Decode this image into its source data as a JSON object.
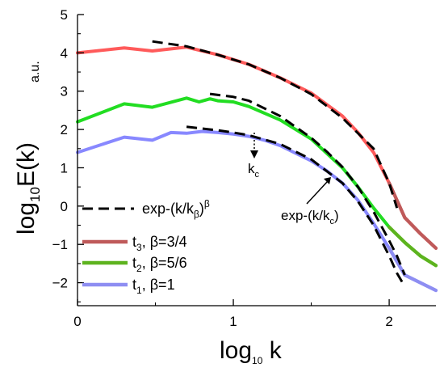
{
  "chart_data": {
    "type": "line",
    "xlabel": "log10 k",
    "ylabel": "log10E(k)",
    "ylabel_unit": "a.u.",
    "xlim": [
      0,
      2.3
    ],
    "ylim": [
      -2.6,
      5
    ],
    "xticks": [
      0,
      1,
      2
    ],
    "yticks": [
      5,
      4,
      3,
      2,
      1,
      0,
      -1,
      -2
    ],
    "grid": false,
    "legend_position": "bottom-left",
    "legend": [
      {
        "label": "exp-(k/kβ)β",
        "style": "dashed",
        "color": "#000000"
      },
      {
        "label": "t3, β=3/4",
        "color": "#bf5a5a"
      },
      {
        "label": "t2, β=5/6",
        "color": "#5db31e"
      },
      {
        "label": "t1, β=1",
        "color": "#8e8ef2"
      }
    ],
    "series": [
      {
        "name": "t3, β=3/4",
        "color": "#ff5a5a",
        "tail_color": "#bf5a5a",
        "x": [
          0,
          0.3,
          0.48,
          0.7,
          0.9,
          1.1,
          1.3,
          1.5,
          1.6,
          1.7,
          1.8,
          1.9,
          2.0,
          2.1,
          2.2,
          2.3
        ],
        "y": [
          4.0,
          4.13,
          4.05,
          4.15,
          3.95,
          3.7,
          3.35,
          2.95,
          2.65,
          2.35,
          1.92,
          1.4,
          0.6,
          -0.3,
          -0.72,
          -1.1
        ]
      },
      {
        "name": "t2, β=5/6",
        "color": "#22dd22",
        "tail_color": "#5db31e",
        "x": [
          0,
          0.3,
          0.48,
          0.7,
          0.78,
          0.85,
          0.9,
          1.0,
          1.1,
          1.3,
          1.5,
          1.7,
          1.8,
          1.9,
          2.0,
          2.1,
          2.2,
          2.3
        ],
        "y": [
          2.2,
          2.67,
          2.58,
          2.82,
          2.72,
          2.8,
          2.75,
          2.72,
          2.6,
          2.25,
          1.75,
          1.0,
          0.5,
          -0.05,
          -0.55,
          -0.95,
          -1.3,
          -1.55
        ]
      },
      {
        "name": "t1, β=1",
        "color": "#8888ff",
        "tail_color": "#8e8ef2",
        "x": [
          0,
          0.3,
          0.48,
          0.6,
          0.7,
          0.8,
          0.9,
          1.0,
          1.1,
          1.2,
          1.3,
          1.4,
          1.5,
          1.6,
          1.7,
          1.8,
          1.9,
          2.0,
          2.1,
          2.2,
          2.3
        ],
        "y": [
          1.4,
          1.8,
          1.72,
          1.92,
          1.9,
          1.95,
          1.92,
          1.88,
          1.82,
          1.72,
          1.58,
          1.38,
          1.18,
          0.92,
          0.6,
          0.15,
          -0.45,
          -1.1,
          -1.8,
          -2.0,
          -2.2
        ]
      }
    ],
    "fits": [
      {
        "x": [
          0.48,
          0.7,
          0.9,
          1.1,
          1.3,
          1.5,
          1.7,
          1.9,
          2.0,
          2.05
        ],
        "y": [
          4.3,
          4.17,
          3.95,
          3.7,
          3.35,
          2.92,
          2.3,
          1.5,
          0.6,
          -0.05
        ]
      },
      {
        "x": [
          0.85,
          1.0,
          1.1,
          1.3,
          1.5,
          1.6,
          1.7,
          1.8,
          1.9,
          2.0,
          2.05,
          2.1
        ],
        "y": [
          2.93,
          2.85,
          2.75,
          2.35,
          1.78,
          1.42,
          1.02,
          0.5,
          -0.15,
          -0.9,
          -1.3,
          -1.8
        ]
      },
      {
        "x": [
          0.7,
          0.9,
          1.0,
          1.1,
          1.3,
          1.5,
          1.7,
          1.8,
          1.9,
          2.0,
          2.05,
          2.1
        ],
        "y": [
          2.07,
          1.98,
          1.92,
          1.85,
          1.62,
          1.22,
          0.6,
          0.12,
          -0.5,
          -1.3,
          -1.75,
          -2.1
        ]
      }
    ],
    "annotations": [
      {
        "text": "kc",
        "arrow": "dotted"
      },
      {
        "text": "exp-(k/kc)",
        "arrow": "solid"
      }
    ]
  }
}
